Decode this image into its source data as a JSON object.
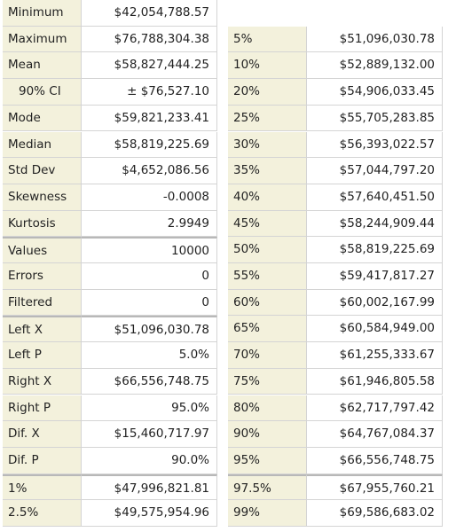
{
  "left_table": {
    "rows": [
      [
        "Minimum",
        "$42,054,788.57"
      ],
      [
        "Maximum",
        "$76,788,304.38"
      ],
      [
        "Mean",
        "$58,827,444.25"
      ],
      [
        "90% CI",
        "± $76,527.10"
      ],
      [
        "Mode",
        "$59,821,233.41"
      ],
      [
        "Median",
        "$58,819,225.69"
      ],
      [
        "Std Dev",
        "$4,652,086.56"
      ],
      [
        "Skewness",
        "-0.0008"
      ],
      [
        "Kurtosis",
        "2.9949"
      ],
      [
        "Values",
        "10000"
      ],
      [
        "Errors",
        "0"
      ],
      [
        "Filtered",
        "0"
      ],
      [
        "Left X",
        "$51,096,030.78"
      ],
      [
        "Left P",
        "5.0%"
      ],
      [
        "Right X",
        "$66,556,748.75"
      ],
      [
        "Right P",
        "95.0%"
      ],
      [
        "Dif. X",
        "$15,460,717.97"
      ],
      [
        "Dif. P",
        "90.0%"
      ],
      [
        "1%",
        "$47,996,821.81"
      ],
      [
        "2.5%",
        "$49,575,954.96"
      ]
    ]
  },
  "right_table": {
    "rows": [
      [
        "5%",
        "$51,096,030.78"
      ],
      [
        "10%",
        "$52,889,132.00"
      ],
      [
        "20%",
        "$54,906,033.45"
      ],
      [
        "25%",
        "$55,705,283.85"
      ],
      [
        "30%",
        "$56,393,022.57"
      ],
      [
        "35%",
        "$57,044,797.20"
      ],
      [
        "40%",
        "$57,640,451.50"
      ],
      [
        "45%",
        "$58,244,909.44"
      ],
      [
        "50%",
        "$58,819,225.69"
      ],
      [
        "55%",
        "$59,417,817.27"
      ],
      [
        "60%",
        "$60,002,167.99"
      ],
      [
        "65%",
        "$60,584,949.00"
      ],
      [
        "70%",
        "$61,255,333.67"
      ],
      [
        "75%",
        "$61,946,805.58"
      ],
      [
        "80%",
        "$62,717,797.42"
      ],
      [
        "90%",
        "$64,767,084.37"
      ],
      [
        "95%",
        "$66,556,748.75"
      ],
      [
        "97.5%",
        "$67,955,760.21"
      ],
      [
        "99%",
        "$69,586,683.02"
      ]
    ]
  }
}
